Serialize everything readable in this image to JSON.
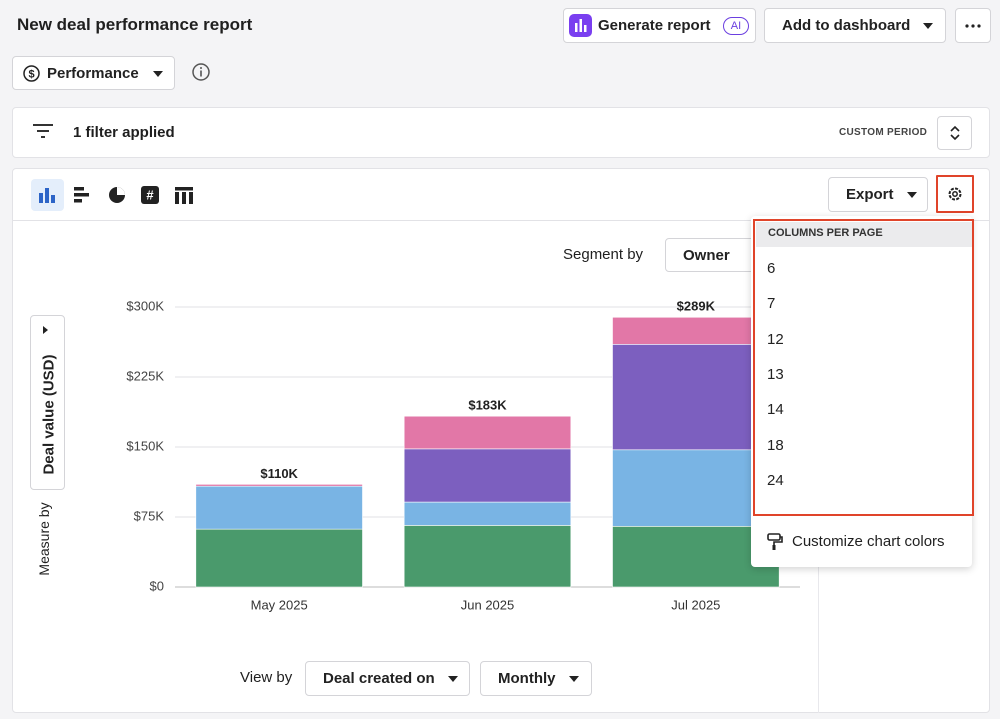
{
  "header": {
    "title": "New deal performance report",
    "generate": "Generate report",
    "ai": "AI",
    "add": "Add to dashboard"
  },
  "view_selector": "Performance",
  "filter": {
    "text": "1 filter applied",
    "period": "CUSTOM PERIOD"
  },
  "toolbar": {
    "export": "Export"
  },
  "segment": {
    "label": "Segment by",
    "value": "Owner"
  },
  "measure": {
    "label": "Measure by",
    "value": "Deal value (USD)"
  },
  "view_by": {
    "label": "View by",
    "field": "Deal created on",
    "interval": "Monthly"
  },
  "columns_menu": {
    "heading": "COLUMNS PER PAGE",
    "options": [
      6,
      7,
      12,
      13,
      14,
      18,
      24
    ],
    "customize": "Customize chart colors"
  },
  "chart_data": {
    "type": "bar",
    "stacked": true,
    "categories": [
      "May 2025",
      "Jun 2025",
      "Jul 2025"
    ],
    "series": [
      {
        "color": "#4a9a6c",
        "values": [
          62000,
          66000,
          65000
        ]
      },
      {
        "color": "#79b4e4",
        "values": [
          46000,
          25000,
          82000
        ]
      },
      {
        "color": "#7c5fbf",
        "values": [
          0,
          57000,
          113000
        ]
      },
      {
        "color": "#e277a7",
        "values": [
          2000,
          35000,
          29000
        ]
      }
    ],
    "totals": {
      "values": [
        110000,
        183000,
        289000
      ],
      "value_labels": [
        "$110K",
        "$183K",
        "$289K"
      ]
    },
    "ylim": [
      0,
      300000
    ],
    "yticks": [
      {
        "value": 0,
        "label": "$0"
      },
      {
        "value": 75000,
        "label": "$75K"
      },
      {
        "value": 150000,
        "label": "$150K"
      },
      {
        "value": 225000,
        "label": "$225K"
      },
      {
        "value": 300000,
        "label": "$300K"
      }
    ],
    "grid": true
  }
}
